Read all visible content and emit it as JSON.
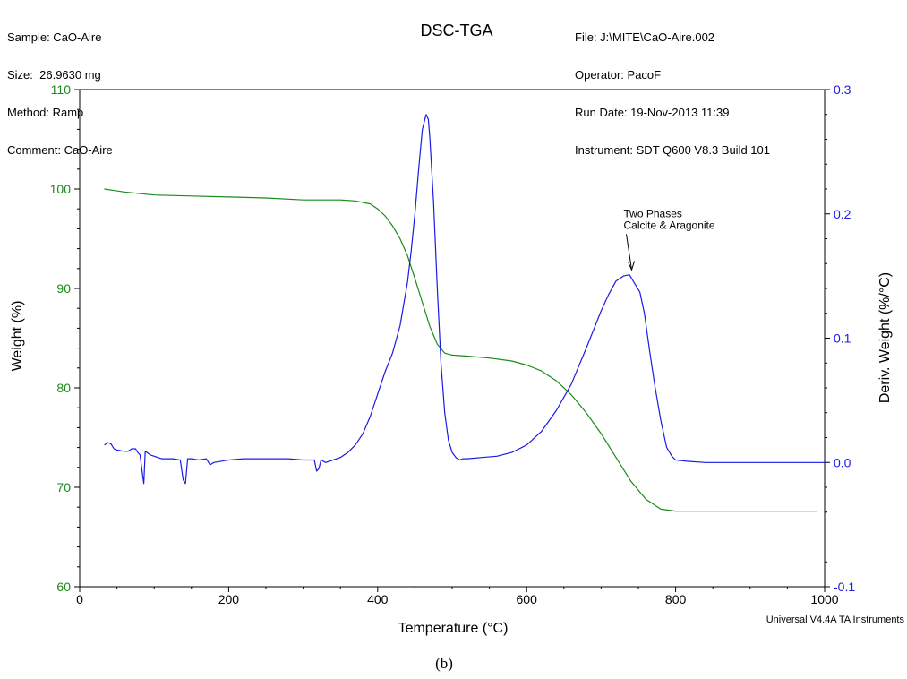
{
  "header": {
    "left_lines": [
      "Sample: CaO-Aire",
      "Size:  26.9630 mg",
      "Method: Ramp",
      "Comment: CaO-Aire"
    ],
    "right_lines": [
      "File: J:\\MITE\\CaO-Aire.002",
      "Operator: PacoF",
      "Run Date: 19-Nov-2013 11:39",
      "Instrument: SDT Q600 V8.3 Build 101"
    ]
  },
  "footer": {
    "credit": "Universal V4.4A TA Instruments",
    "caption": "(b)"
  },
  "colors": {
    "weight": "#1b8a1b",
    "deriv": "#1a1ae6",
    "axis": "#000000"
  },
  "chart_data": {
    "type": "line",
    "title": "DSC-TGA",
    "xlabel": "Temperature (°C)",
    "ylabel_left": "Weight (%)",
    "ylabel_right": "Deriv. Weight (%/°C)",
    "xlim": [
      0,
      1000
    ],
    "ylim_left": [
      60,
      110
    ],
    "ylim_right": [
      -0.1,
      0.3
    ],
    "xticks": [
      0,
      200,
      400,
      600,
      800,
      1000
    ],
    "yticks_left": [
      60,
      70,
      80,
      90,
      100,
      110
    ],
    "yticks_right": [
      -0.1,
      0.0,
      0.1,
      0.2,
      0.3
    ],
    "yticklabels_right": [
      "-0.1",
      "0.0",
      "0.1",
      "0.2",
      "0.3"
    ],
    "grid": false,
    "annotation": {
      "lines": [
        "Two Phases",
        "Calcite & Aragonite"
      ],
      "x": 741,
      "y": 0.152
    },
    "series": [
      {
        "axis": "left",
        "x": [
          33,
          60,
          100,
          150,
          200,
          250,
          300,
          350,
          370,
          390,
          400,
          410,
          420,
          430,
          440,
          450,
          460,
          470,
          480,
          490,
          500,
          520,
          550,
          580,
          600,
          620,
          640,
          660,
          680,
          700,
          720,
          740,
          760,
          780,
          790,
          800,
          850,
          900,
          950,
          990
        ],
        "y": [
          100.0,
          99.7,
          99.4,
          99.3,
          99.2,
          99.1,
          98.9,
          98.9,
          98.8,
          98.5,
          98.0,
          97.3,
          96.3,
          95.0,
          93.3,
          91.0,
          88.6,
          86.2,
          84.4,
          83.5,
          83.3,
          83.2,
          83.0,
          82.7,
          82.3,
          81.7,
          80.7,
          79.3,
          77.5,
          75.4,
          73.0,
          70.6,
          68.8,
          67.8,
          67.7,
          67.6,
          67.6,
          67.6,
          67.6,
          67.6
        ]
      },
      {
        "axis": "right",
        "x": [
          33,
          38,
          42,
          46,
          50,
          60,
          65,
          70,
          75,
          78,
          81,
          84,
          86,
          88,
          95,
          110,
          125,
          135,
          139,
          142,
          145,
          150,
          160,
          170,
          175,
          180,
          200,
          220,
          240,
          260,
          280,
          300,
          315,
          318,
          321,
          324,
          330,
          340,
          350,
          360,
          370,
          380,
          390,
          400,
          410,
          420,
          430,
          440,
          445,
          450,
          455,
          460,
          465,
          468,
          470,
          475,
          480,
          485,
          490,
          495,
          500,
          505,
          510,
          515,
          520,
          540,
          560,
          580,
          600,
          620,
          640,
          660,
          680,
          700,
          710,
          720,
          730,
          738,
          745,
          752,
          758,
          765,
          772,
          780,
          788,
          795,
          800,
          815,
          840,
          870,
          900,
          950,
          1000
        ],
        "y": [
          0.014,
          0.016,
          0.015,
          0.011,
          0.01,
          0.009,
          0.009,
          0.011,
          0.011,
          0.008,
          0.006,
          -0.008,
          -0.017,
          0.009,
          0.006,
          0.003,
          0.003,
          0.002,
          -0.014,
          -0.017,
          0.003,
          0.003,
          0.002,
          0.003,
          -0.002,
          0.0,
          0.002,
          0.003,
          0.003,
          0.003,
          0.003,
          0.002,
          0.002,
          -0.007,
          -0.005,
          0.002,
          0.0,
          0.002,
          0.004,
          0.008,
          0.014,
          0.023,
          0.037,
          0.055,
          0.073,
          0.088,
          0.11,
          0.145,
          0.17,
          0.2,
          0.236,
          0.268,
          0.28,
          0.276,
          0.262,
          0.21,
          0.14,
          0.08,
          0.04,
          0.018,
          0.008,
          0.004,
          0.002,
          0.003,
          0.003,
          0.004,
          0.005,
          0.008,
          0.014,
          0.025,
          0.042,
          0.063,
          0.092,
          0.122,
          0.135,
          0.146,
          0.15,
          0.151,
          0.144,
          0.137,
          0.12,
          0.09,
          0.062,
          0.034,
          0.012,
          0.005,
          0.002,
          0.001,
          0.0,
          0.0,
          0.0,
          0.0,
          0.0
        ]
      }
    ]
  }
}
